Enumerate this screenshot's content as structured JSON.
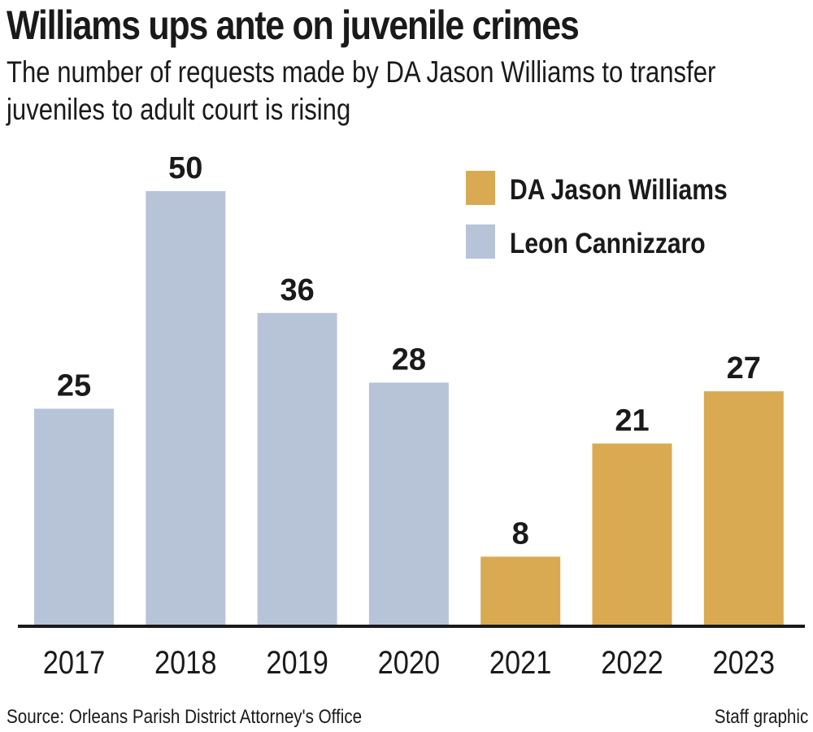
{
  "chart_data": {
    "type": "bar",
    "title": "Williams ups ante on juvenile crimes",
    "subtitle": "The number of requests made by DA Jason Williams to transfer juveniles to adult court is rising",
    "categories": [
      "2017",
      "2018",
      "2019",
      "2020",
      "2021",
      "2022",
      "2023"
    ],
    "values": [
      25,
      50,
      36,
      28,
      8,
      21,
      27
    ],
    "series_by_category": [
      "Leon Cannizzaro",
      "Leon Cannizzaro",
      "Leon Cannizzaro",
      "Leon Cannizzaro",
      "DA Jason Williams",
      "DA Jason Williams",
      "DA Jason Williams"
    ],
    "legend": [
      {
        "name": "DA Jason Williams",
        "color": "#d9aa52"
      },
      {
        "name": "Leon Cannizzaro",
        "color": "#b7c4d8"
      }
    ],
    "legend_position": "top-right",
    "xlabel": "",
    "ylabel": "",
    "ylim": [
      0,
      50
    ],
    "grid": false,
    "source": "Source: Orleans Parish District Attorney's Office",
    "credit": "Staff graphic"
  }
}
